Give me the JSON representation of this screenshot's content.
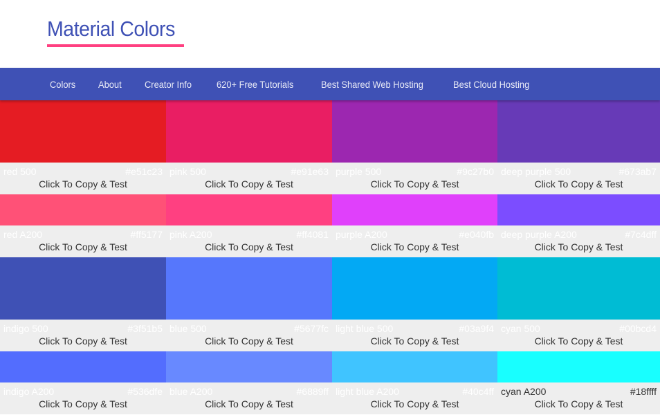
{
  "header": {
    "title": "Material Colors",
    "accent": "#ff4081"
  },
  "nav": {
    "items": [
      "Colors",
      "About",
      "Creator Info",
      "620+ Free Tutorials",
      "Best Shared Web Hosting",
      "Best Cloud Hosting"
    ],
    "background": "#3f51b5"
  },
  "cta": "Click To Copy & Test",
  "rows": [
    {
      "size": "big",
      "colors": [
        {
          "name": "red 500",
          "hex": "#e51c23"
        },
        {
          "name": "pink 500",
          "hex": "#e91e63"
        },
        {
          "name": "purple 500",
          "hex": "#9c27b0"
        },
        {
          "name": "deep purple 500",
          "hex": "#673ab7"
        }
      ]
    },
    {
      "size": "small",
      "colors": [
        {
          "name": "red A200",
          "hex": "#ff5177"
        },
        {
          "name": "pink A200",
          "hex": "#ff4081"
        },
        {
          "name": "purple A200",
          "hex": "#e040fb"
        },
        {
          "name": "deep purple A200",
          "hex": "#7c4dff"
        }
      ]
    },
    {
      "size": "big",
      "colors": [
        {
          "name": "indigo 500",
          "hex": "#3f51b5"
        },
        {
          "name": "blue 500",
          "hex": "#5677fc"
        },
        {
          "name": "light blue 500",
          "hex": "#03a9f4"
        },
        {
          "name": "cyan 500",
          "hex": "#00bcd4"
        }
      ]
    },
    {
      "size": "small",
      "colors": [
        {
          "name": "indigo A200",
          "hex": "#536dfe"
        },
        {
          "name": "blue A200",
          "hex": "#6889ff"
        },
        {
          "name": "light blue A200",
          "hex": "#40c4ff"
        },
        {
          "name": "cyan A200",
          "hex": "#18ffff",
          "dark_text": true
        }
      ]
    }
  ]
}
